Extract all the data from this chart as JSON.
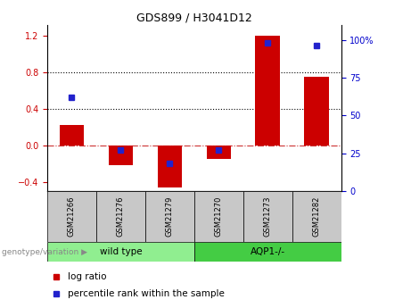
{
  "title": "GDS899 / H3041D12",
  "categories": [
    "GSM21266",
    "GSM21276",
    "GSM21279",
    "GSM21270",
    "GSM21273",
    "GSM21282"
  ],
  "log_ratios": [
    0.22,
    -0.22,
    -0.46,
    -0.15,
    1.2,
    0.75
  ],
  "percentile_ranks": [
    62,
    27,
    18,
    27,
    98,
    96
  ],
  "group1_label": "wild type",
  "group2_label": "AQP1-/-",
  "group1_indices": [
    0,
    1,
    2
  ],
  "group2_indices": [
    3,
    4,
    5
  ],
  "bar_color": "#cc0000",
  "dot_color": "#2222cc",
  "group1_bg": "#90ee90",
  "group2_bg": "#44cc44",
  "label_bg": "#c8c8c8",
  "ylim_left": [
    -0.5,
    1.32
  ],
  "ylim_right": [
    0,
    110
  ],
  "yticks_left": [
    -0.4,
    0.0,
    0.4,
    0.8,
    1.2
  ],
  "yticks_right": [
    0,
    25,
    50,
    75,
    100
  ],
  "hlines": [
    0.4,
    0.8
  ],
  "legend_label1": "log ratio",
  "legend_label2": "percentile rank within the sample",
  "genotype_label": "genotype/variation"
}
